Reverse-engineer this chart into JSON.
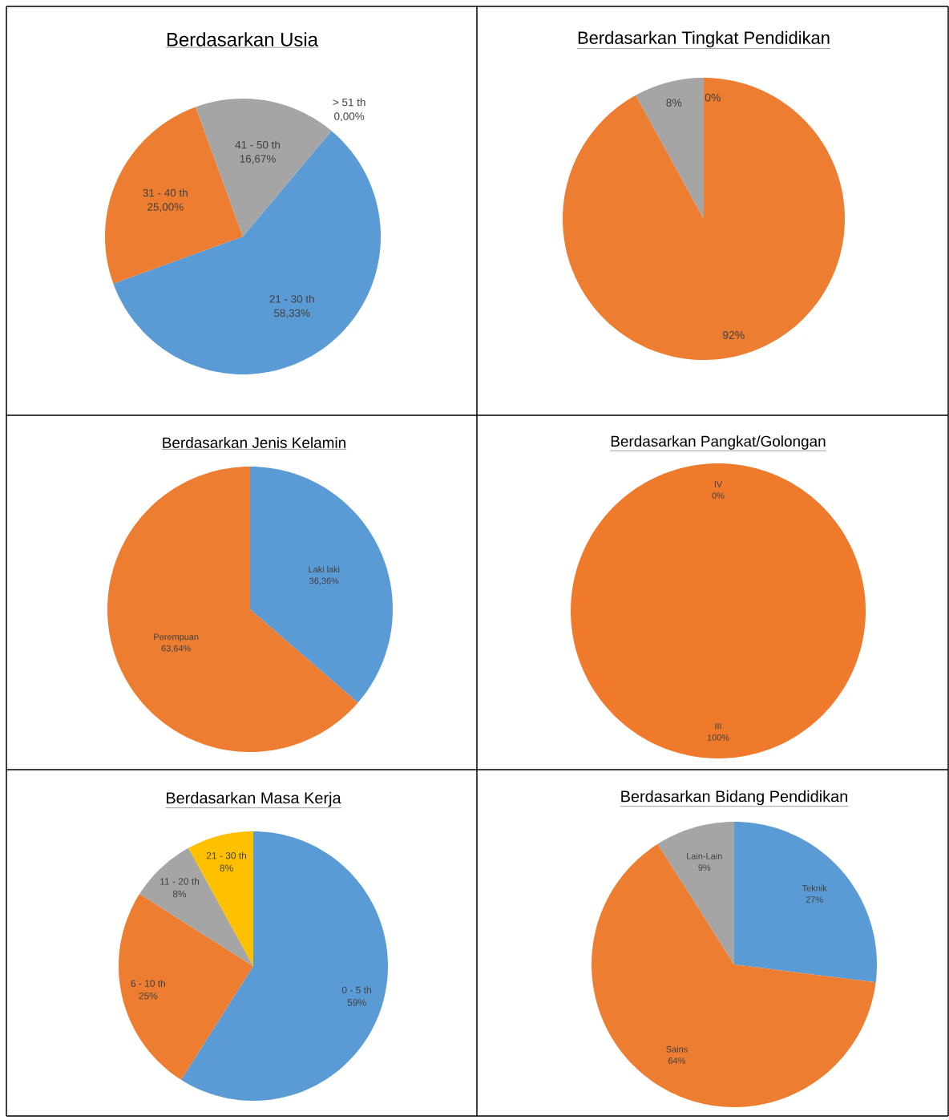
{
  "chart_data": [
    {
      "type": "pie",
      "title": "Berdasarkan Usia",
      "categories": [
        "21 - 30 th",
        "31 - 40 th",
        "41 - 50 th",
        "> 51 th"
      ],
      "values": [
        58.33,
        25.0,
        16.67,
        0
      ],
      "colors": [
        "#5b9bd5",
        "#ed7d31",
        "#a5a5a5",
        "#ffc000"
      ],
      "value_labels": [
        "58,33%",
        "25,00%",
        "16,67%",
        "0,00%"
      ]
    },
    {
      "type": "pie",
      "title": "Berdasarkan Tingkat Pendidikan",
      "categories": [
        null,
        null,
        null
      ],
      "values": [
        92,
        8,
        0
      ],
      "colors": [
        "#ed7d31",
        "#a5a5a5",
        "#ffc000"
      ],
      "value_labels": [
        "92%",
        "8%",
        "0%"
      ]
    },
    {
      "type": "pie",
      "title": "Berdasarkan Jenis Kelamin",
      "categories": [
        "Laki laki",
        "Perempuan"
      ],
      "values": [
        36.36,
        63.64
      ],
      "colors": [
        "#5b9bd5",
        "#ed7d31"
      ],
      "value_labels": [
        "36,36%",
        "63,64%"
      ]
    },
    {
      "type": "pie",
      "title": "Berdasarkan Pangkat/Golongan",
      "categories": [
        "III",
        "IV"
      ],
      "values": [
        100,
        0
      ],
      "colors": [
        "#f07a2c",
        "#5b9bd5"
      ],
      "value_labels": [
        "100%",
        "0%"
      ]
    },
    {
      "type": "pie",
      "title": "Berdasarkan Masa Kerja",
      "categories": [
        "0 - 5 th",
        "6 - 10 th",
        "11 - 20 th",
        "21 - 30 th"
      ],
      "values": [
        59,
        25,
        8,
        8
      ],
      "colors": [
        "#5b9bd5",
        "#ed7d31",
        "#a5a5a5",
        "#ffc000"
      ],
      "value_labels": [
        "59%",
        "25%",
        "8%",
        "8%"
      ]
    },
    {
      "type": "pie",
      "title": "Berdasarkan Bidang Pendidikan",
      "categories": [
        "Teknik",
        "Sains",
        "Lain-Lain"
      ],
      "values": [
        27,
        64,
        9
      ],
      "colors": [
        "#5b9bd5",
        "#ed7d31",
        "#a5a5a5"
      ],
      "value_labels": [
        "27%",
        "64%",
        "9%"
      ]
    }
  ]
}
